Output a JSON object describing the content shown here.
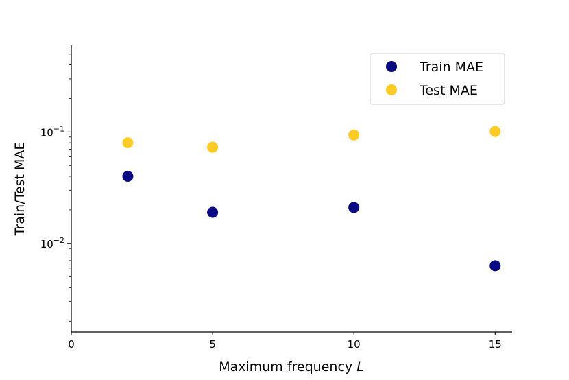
{
  "chart_data": {
    "type": "scatter",
    "xlabel": "Maximum frequency",
    "xlabel_var": "L",
    "ylabel": "Train/Test MAE",
    "x_ticks": [
      0,
      5,
      10,
      15
    ],
    "x_tick_labels": [
      "0",
      "5",
      "10",
      "15"
    ],
    "y_scale": "log",
    "y_major_ticks": [
      0.01,
      0.1
    ],
    "y_tick_labels": [
      {
        "base": "10",
        "exp": "−2"
      },
      {
        "base": "10",
        "exp": "−1"
      }
    ],
    "xlim": [
      0,
      15.6
    ],
    "ylim": [
      0.0016,
      0.6
    ],
    "grid": false,
    "legend_position": "top-right",
    "series": [
      {
        "name": "Train MAE",
        "color": "#0a0a82",
        "x": [
          2,
          5,
          10,
          15
        ],
        "y": [
          0.04,
          0.019,
          0.021,
          0.0063
        ]
      },
      {
        "name": "Test MAE",
        "color": "#fdcb26",
        "x": [
          2,
          5,
          10,
          15
        ],
        "y": [
          0.08,
          0.073,
          0.094,
          0.101
        ]
      }
    ]
  }
}
